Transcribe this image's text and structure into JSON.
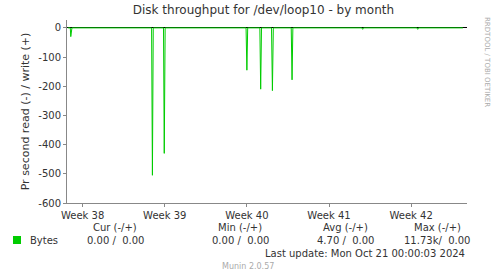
{
  "chart_data": {
    "type": "line",
    "title": "Disk throughput for /dev/loop10 - by month",
    "y_label": "Pr second read (-) / write (+)",
    "x": [
      37.82,
      37.85,
      37.856,
      37.87,
      38.84,
      38.85,
      38.86,
      38.985,
      38.994,
      39.005,
      39.99,
      40.0,
      40.01,
      40.158,
      40.168,
      40.178,
      40.3,
      40.311,
      40.322,
      40.54,
      40.55,
      40.56,
      41.4,
      41.41,
      41.42,
      42.07,
      42.08,
      42.09,
      42.63
    ],
    "series": [
      {
        "name": "Bytes",
        "color": "#00cc00",
        "values": [
          0,
          0,
          -30,
          0,
          0,
          -505,
          0,
          0,
          -430,
          0,
          0,
          -145,
          0,
          0,
          -210,
          0,
          0,
          -215,
          0,
          0,
          -178,
          0,
          0,
          -5,
          0,
          0,
          -5,
          0,
          0
        ]
      }
    ],
    "xlim": [
      37.81,
      42.68
    ],
    "ylim": [
      -600,
      27
    ],
    "xticks": [
      {
        "value": 38,
        "label": "Week 38"
      },
      {
        "value": 39,
        "label": "Week 39"
      },
      {
        "value": 40,
        "label": "Week 40"
      },
      {
        "value": 41,
        "label": "Week 41"
      },
      {
        "value": 42,
        "label": "Week 42"
      }
    ],
    "yticks": [
      -600,
      -500,
      -400,
      -300,
      -200,
      -100,
      0
    ],
    "grid": false,
    "legend_table": {
      "headers": [
        "Cur (-/+)",
        "Min (-/+)",
        "Avg (-/+)",
        "Max (-/+)"
      ],
      "rows": [
        {
          "name": "Bytes",
          "cells": [
            "0.00 /  0.00",
            "0.00 /  0.00",
            "4.70 /  0.00",
            "11.73k/  0.00"
          ]
        }
      ]
    },
    "footer": "Last update: Mon Oct 21 00:00:03 2024",
    "credit": "Munin 2.0.57",
    "side_text": "RRDTOOL / TOBI OETIKER"
  }
}
